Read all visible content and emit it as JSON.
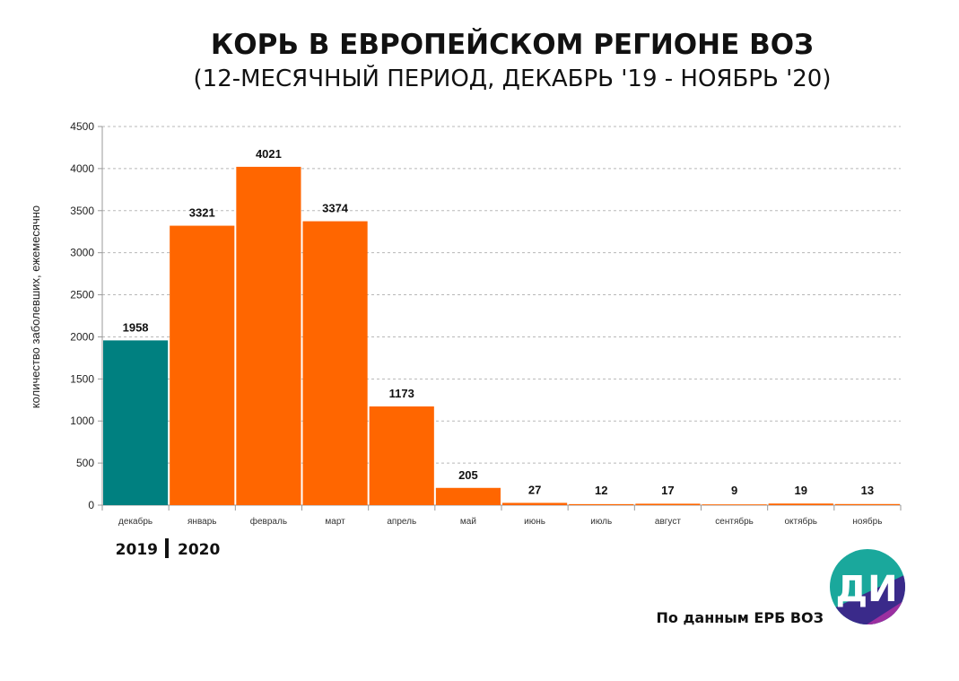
{
  "chart_data": {
    "type": "bar",
    "title": "КОРЬ В ЕВРОПЕЙСКОМ РЕГИОНЕ ВОЗ",
    "subtitle": "(12-МЕСЯЧНЫЙ ПЕРИОД, ДЕКАБРЬ '19 - НОЯБРЬ '20)",
    "ylabel": "количество заболевших, ежемесячно",
    "xlabel": "",
    "ylim": [
      0,
      4500
    ],
    "yticks": [
      0,
      500,
      1000,
      1500,
      2000,
      2500,
      3000,
      3500,
      4000,
      4500
    ],
    "grid": true,
    "categories": [
      "декабрь",
      "январь",
      "февраль",
      "март",
      "апрель",
      "май",
      "июнь",
      "июль",
      "август",
      "сентябрь",
      "октябрь",
      "ноябрь"
    ],
    "values": [
      1958,
      3321,
      4021,
      3374,
      1173,
      205,
      27,
      12,
      17,
      9,
      19,
      13
    ],
    "years": [
      "2019",
      "2020"
    ],
    "colors": {
      "2019": "#008080",
      "2020": "#ff6600"
    }
  },
  "source": "По данным ЕРБ ВОЗ",
  "logo": {
    "text": "ДИ",
    "colors": [
      "#1aa89c",
      "#3a2a8a",
      "#9b2fa0"
    ]
  }
}
